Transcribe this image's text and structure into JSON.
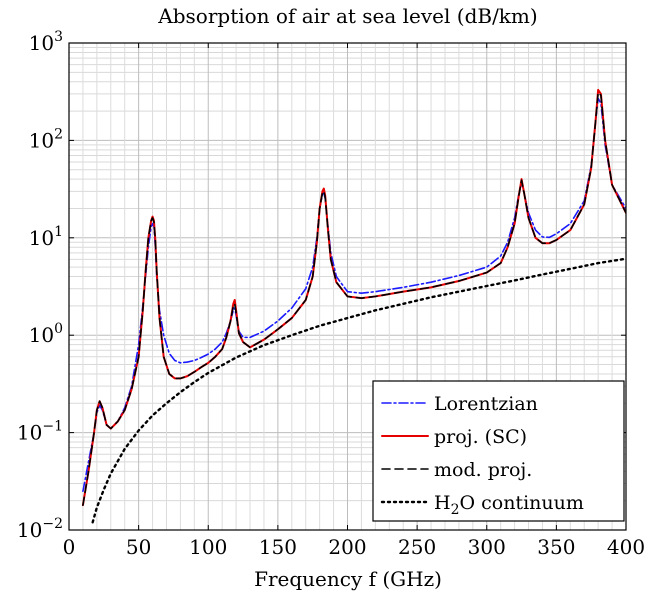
{
  "chart_data": {
    "type": "line",
    "title": "Absorption of air at sea level (dB/km)",
    "xlabel": "Frequency f (GHz)",
    "ylabel": "",
    "xlim": [
      0,
      400
    ],
    "ylim": [
      0.01,
      1000
    ],
    "yscale": "log",
    "grid": true,
    "legend_position": "bottom-right",
    "x_ticks": [
      "0",
      "50",
      "100",
      "150",
      "200",
      "250",
      "300",
      "350",
      "400"
    ],
    "y_ticks": [
      {
        "base": "10",
        "exp": "−2"
      },
      {
        "base": "10",
        "exp": "−1"
      },
      {
        "base": "10",
        "exp": "0"
      },
      {
        "base": "10",
        "exp": "1"
      },
      {
        "base": "10",
        "exp": "2"
      },
      {
        "base": "10",
        "exp": "3"
      }
    ],
    "series": [
      {
        "name": "Lorentzian",
        "color": "#1a1aff",
        "style": "dashdot",
        "x": [
          10,
          14,
          18,
          20,
          22,
          24,
          27,
          30,
          35,
          40,
          45,
          50,
          53,
          55,
          57,
          59,
          60,
          61,
          62,
          63,
          65,
          68,
          72,
          76,
          80,
          85,
          90,
          95,
          100,
          105,
          110,
          113,
          116,
          118,
          119,
          120,
          122,
          125,
          130,
          140,
          150,
          160,
          170,
          175,
          178,
          180,
          182,
          183,
          184,
          186,
          188,
          192,
          200,
          210,
          220,
          240,
          260,
          280,
          300,
          310,
          315,
          320,
          323,
          325,
          327,
          330,
          335,
          340,
          345,
          350,
          360,
          370,
          375,
          378,
          380,
          382,
          385,
          390,
          400
        ],
        "y": [
          0.025,
          0.05,
          0.1,
          0.16,
          0.19,
          0.17,
          0.12,
          0.11,
          0.13,
          0.18,
          0.3,
          0.8,
          2,
          4,
          8,
          13,
          14,
          13,
          8,
          4,
          1.8,
          1,
          0.65,
          0.55,
          0.52,
          0.53,
          0.55,
          0.59,
          0.64,
          0.72,
          0.85,
          1.05,
          1.4,
          1.8,
          1.9,
          1.6,
          1.1,
          0.95,
          0.95,
          1.1,
          1.4,
          1.9,
          3,
          5,
          10,
          20,
          28,
          29,
          25,
          13,
          7,
          4,
          2.8,
          2.7,
          2.8,
          3.1,
          3.5,
          4.1,
          5,
          6.5,
          9,
          16,
          28,
          37,
          28,
          18,
          12,
          10.2,
          10.1,
          11,
          14,
          24,
          55,
          150,
          270,
          240,
          90,
          35,
          20
        ]
      },
      {
        "name": "proj. (SC)",
        "color": "#e60000",
        "style": "solid",
        "x": [
          10,
          14,
          18,
          20,
          22,
          24,
          27,
          30,
          35,
          40,
          45,
          50,
          53,
          55,
          57,
          59,
          60,
          61,
          62,
          63,
          65,
          68,
          72,
          76,
          80,
          85,
          90,
          95,
          100,
          105,
          110,
          113,
          116,
          118,
          119,
          120,
          122,
          125,
          130,
          140,
          150,
          160,
          170,
          175,
          178,
          180,
          182,
          183,
          184,
          186,
          188,
          192,
          200,
          210,
          220,
          240,
          260,
          280,
          300,
          310,
          315,
          320,
          323,
          325,
          327,
          330,
          335,
          340,
          345,
          350,
          360,
          370,
          375,
          378,
          380,
          382,
          385,
          390,
          400
        ],
        "y": [
          0.018,
          0.04,
          0.1,
          0.17,
          0.21,
          0.18,
          0.12,
          0.11,
          0.13,
          0.17,
          0.28,
          0.6,
          1.8,
          4.5,
          10,
          15,
          16.5,
          15,
          9.5,
          4.5,
          1.5,
          0.6,
          0.4,
          0.36,
          0.36,
          0.38,
          0.42,
          0.47,
          0.52,
          0.6,
          0.72,
          0.95,
          1.4,
          2.1,
          2.3,
          1.8,
          1.05,
          0.85,
          0.75,
          0.9,
          1.15,
          1.5,
          2.3,
          4,
          9,
          20,
          30,
          32,
          27,
          12,
          6,
          3.5,
          2.5,
          2.4,
          2.5,
          2.8,
          3.1,
          3.6,
          4.4,
          5.5,
          8,
          14,
          27,
          40,
          28,
          16,
          10,
          8.8,
          8.8,
          9.5,
          12,
          22,
          52,
          150,
          330,
          300,
          100,
          35,
          18
        ]
      },
      {
        "name": "mod. proj.",
        "color": "#000000",
        "style": "dashed",
        "x": [
          10,
          14,
          18,
          20,
          22,
          24,
          27,
          30,
          35,
          40,
          45,
          50,
          53,
          55,
          57,
          59,
          60,
          61,
          62,
          63,
          65,
          68,
          72,
          76,
          80,
          85,
          90,
          95,
          100,
          105,
          110,
          113,
          116,
          118,
          119,
          120,
          122,
          125,
          130,
          140,
          150,
          160,
          170,
          175,
          178,
          180,
          182,
          183,
          184,
          186,
          188,
          192,
          200,
          210,
          220,
          240,
          260,
          280,
          300,
          310,
          315,
          320,
          323,
          325,
          327,
          330,
          335,
          340,
          345,
          350,
          360,
          370,
          375,
          378,
          380,
          382,
          385,
          390,
          400
        ],
        "y": [
          0.018,
          0.04,
          0.1,
          0.17,
          0.21,
          0.18,
          0.12,
          0.11,
          0.13,
          0.17,
          0.28,
          0.6,
          1.8,
          4.5,
          10,
          15,
          16,
          14.5,
          9.5,
          4.5,
          1.5,
          0.6,
          0.4,
          0.36,
          0.36,
          0.38,
          0.42,
          0.47,
          0.52,
          0.6,
          0.72,
          0.95,
          1.4,
          2.0,
          2.1,
          1.7,
          1.05,
          0.85,
          0.75,
          0.9,
          1.15,
          1.5,
          2.3,
          4,
          9,
          20,
          29,
          30,
          26,
          12,
          6,
          3.5,
          2.5,
          2.4,
          2.5,
          2.8,
          3.1,
          3.6,
          4.4,
          5.5,
          8,
          14,
          27,
          39,
          28,
          16,
          10,
          8.8,
          8.8,
          9.5,
          12,
          22,
          52,
          150,
          310,
          290,
          100,
          35,
          18
        ]
      },
      {
        "name": "H₂O continuum",
        "legend_base": "H",
        "legend_sub": "2",
        "legend_rest": "O continuum",
        "color": "#000000",
        "style": "dotted",
        "x": [
          17,
          20,
          25,
          30,
          40,
          50,
          60,
          70,
          80,
          90,
          100,
          120,
          140,
          160,
          180,
          200,
          220,
          240,
          260,
          280,
          300,
          320,
          340,
          360,
          380,
          400
        ],
        "y": [
          0.012,
          0.017,
          0.026,
          0.038,
          0.068,
          0.105,
          0.15,
          0.2,
          0.26,
          0.33,
          0.41,
          0.59,
          0.79,
          1.0,
          1.25,
          1.5,
          1.8,
          2.1,
          2.45,
          2.8,
          3.2,
          3.65,
          4.2,
          4.8,
          5.5,
          6.1
        ]
      }
    ]
  }
}
